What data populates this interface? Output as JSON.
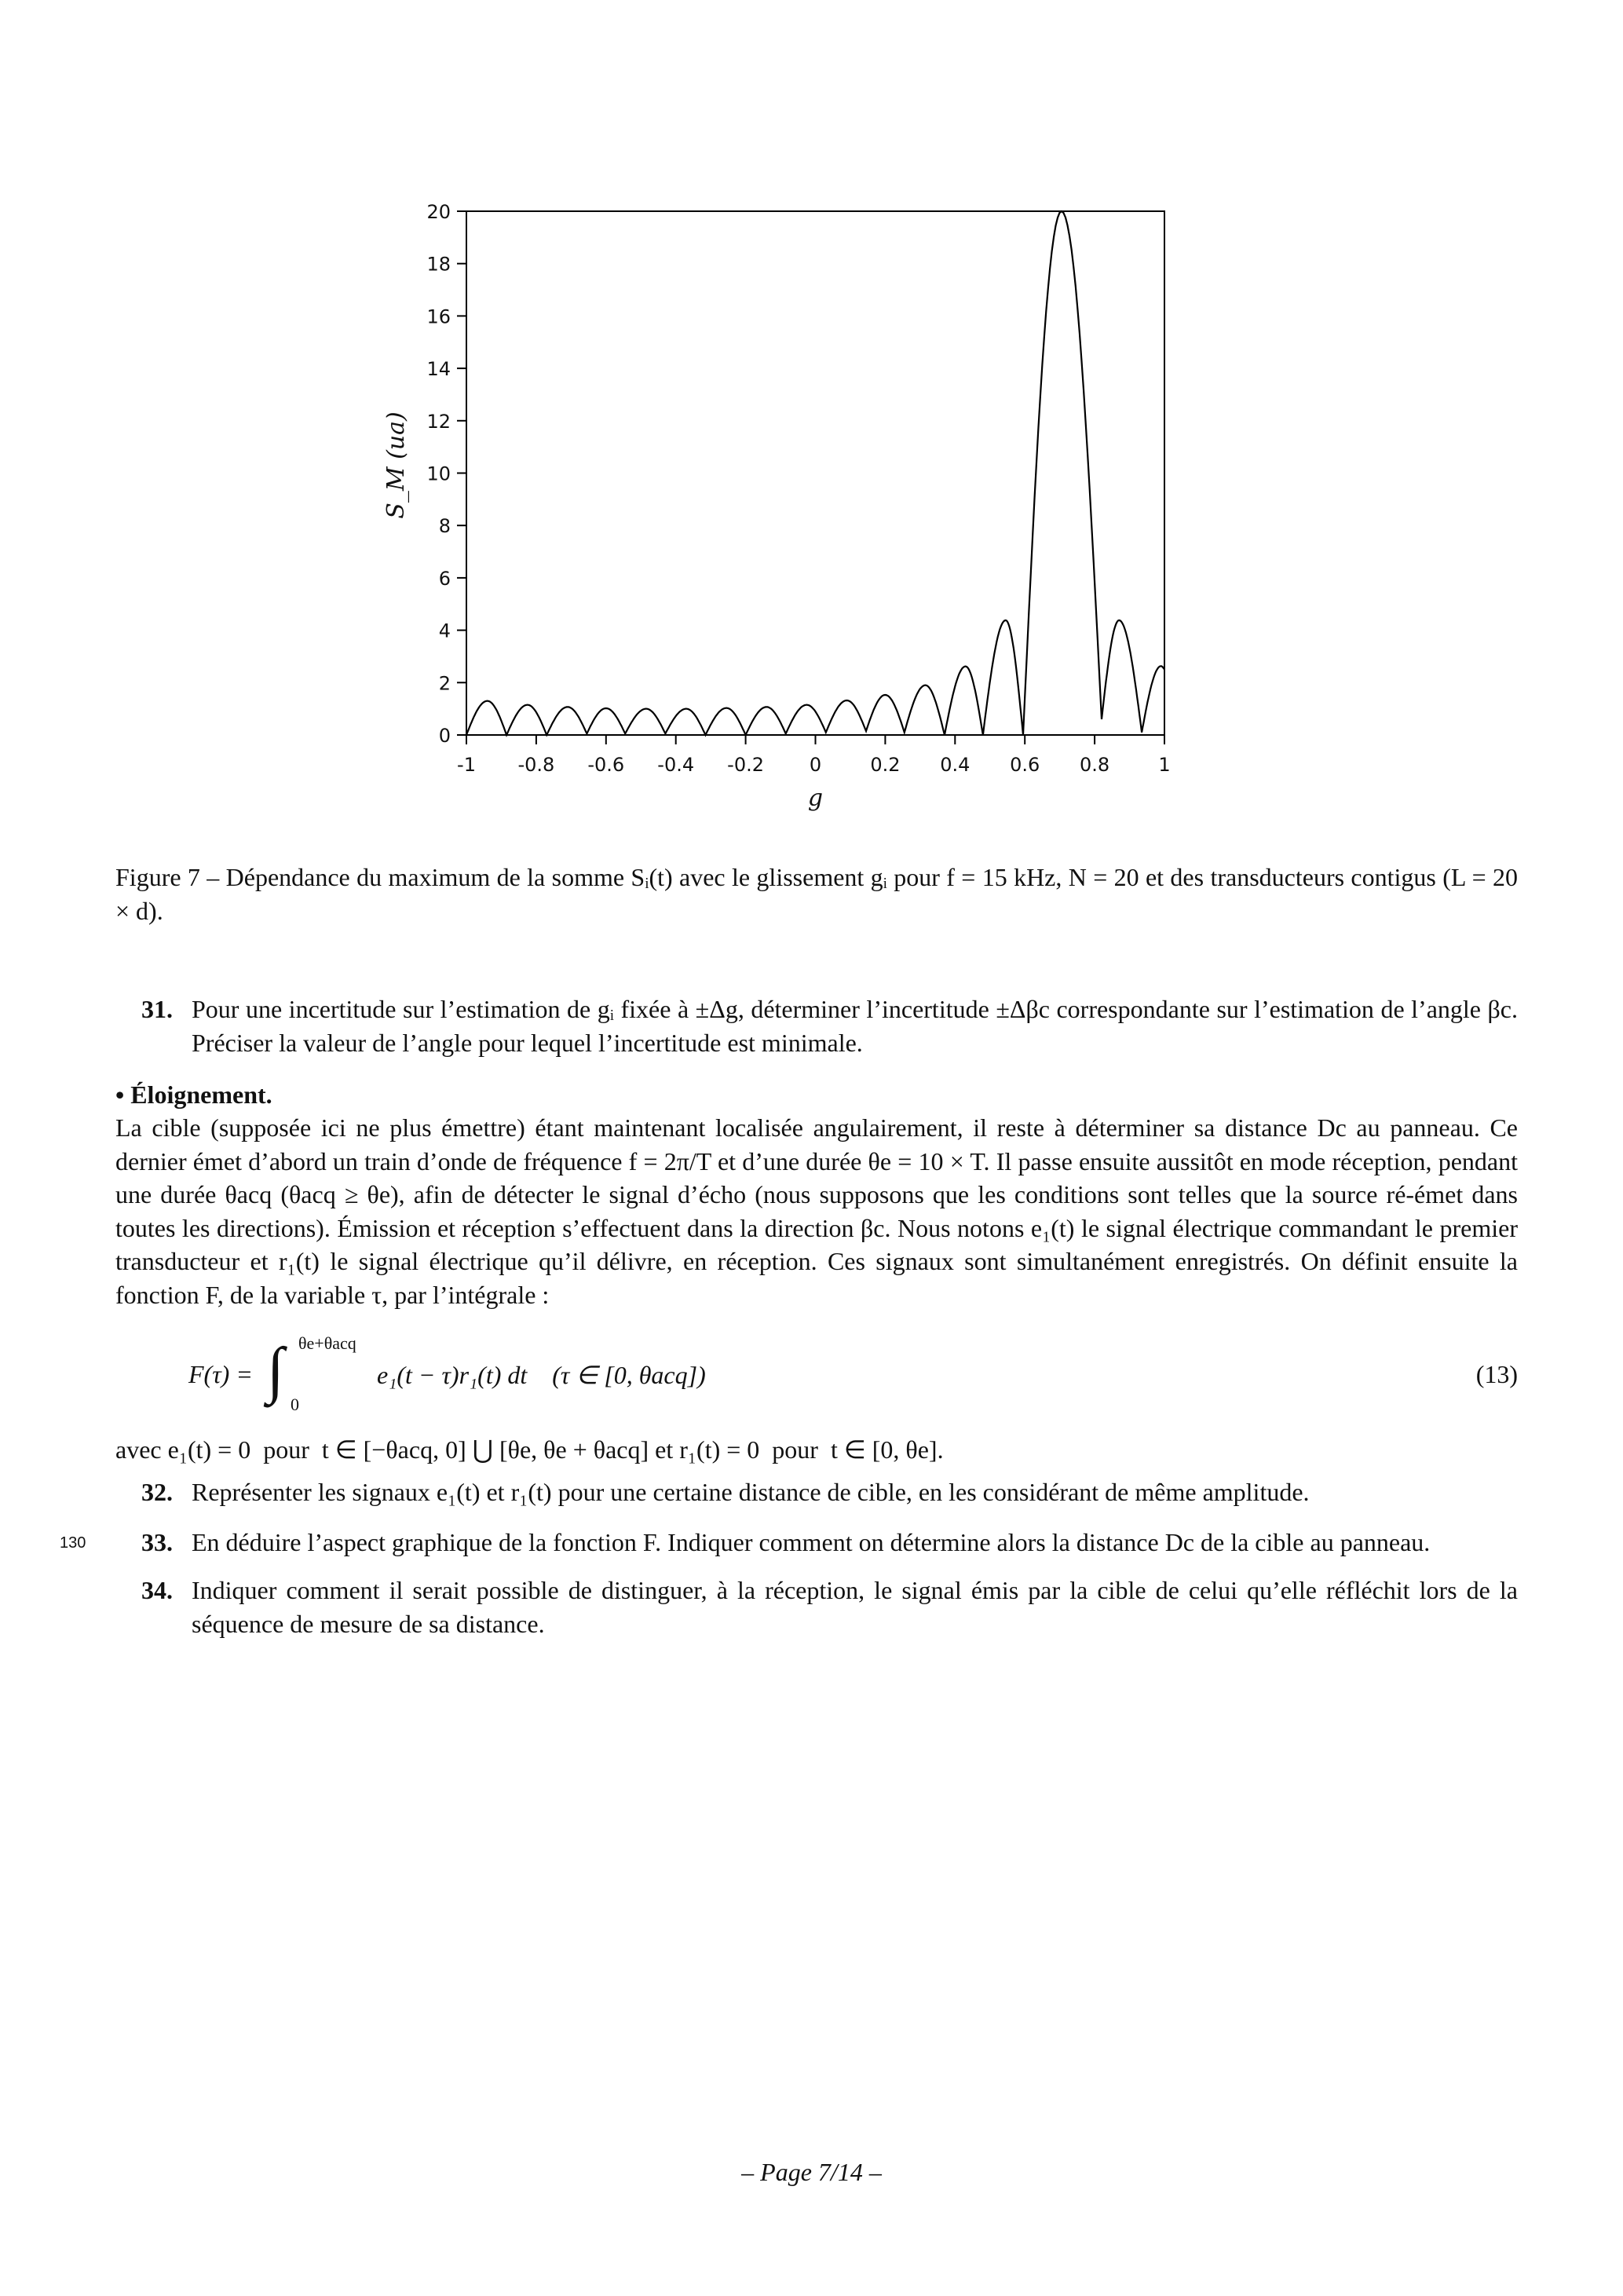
{
  "chart_data": {
    "type": "line",
    "xlabel": "g",
    "ylabel": "S_M   (ua)",
    "xlim": [
      -1,
      1
    ],
    "ylim": [
      0,
      20
    ],
    "x_ticks": [
      "-1",
      "-0.8",
      "-0.6",
      "-0.4",
      "-0.2",
      "0",
      "0.2",
      "0.4",
      "0.6",
      "0.8",
      "1"
    ],
    "x_tick_values": [
      -1,
      -0.8,
      -0.6,
      -0.4,
      -0.2,
      0,
      0.2,
      0.4,
      0.6,
      0.8,
      1
    ],
    "y_ticks": [
      "0",
      "2",
      "4",
      "6",
      "8",
      "10",
      "12",
      "14",
      "16",
      "18",
      "20"
    ],
    "y_tick_values": [
      0,
      2,
      4,
      6,
      8,
      10,
      12,
      14,
      16,
      18,
      20
    ],
    "grid": false,
    "line_color": "#000000",
    "series": [
      {
        "x": [
          -1,
          -0.94,
          -0.885,
          -0.825,
          -0.77,
          -0.71,
          -0.655,
          -0.6,
          -0.545,
          -0.485,
          -0.43,
          -0.37,
          -0.315,
          -0.255,
          -0.2,
          -0.14,
          -0.085,
          -0.025,
          0.03,
          0.09,
          0.145,
          0.2,
          0.255,
          0.315,
          0.37,
          0.43,
          0.48,
          0.545,
          0.595,
          0.705,
          0.82,
          0.87,
          0.935,
          0.99,
          1
        ],
        "y": [
          0,
          1.3,
          0,
          1.15,
          0,
          1.07,
          0.05,
          1.02,
          0.05,
          1.0,
          0.05,
          1.0,
          0,
          1.03,
          0,
          1.07,
          0.05,
          1.15,
          0.1,
          1.32,
          0.15,
          1.53,
          0.1,
          1.9,
          0,
          2.62,
          0,
          4.38,
          0,
          20,
          0.6,
          4.38,
          0.1,
          2.63,
          2.5
        ]
      }
    ]
  },
  "caption": "Figure 7 – Dépendance du maximum de la somme Sᵢ(t) avec le glissement gᵢ pour f = 15 kHz, N = 20 et des transducteurs contigus (L = 20 × d).",
  "questions": [
    {
      "num": "31.",
      "text": "Pour une incertitude sur l’estimation de gᵢ fixée à ±Δg, déterminer l’incertitude ±Δβc correspondante sur l’estimation de l’angle βc. Préciser la valeur de l’angle pour lequel l’incertitude est minimale."
    },
    {
      "num": "32.",
      "text": "Représenter les signaux e₁(t) et r₁(t) pour une certaine distance de cible, en les considérant de même amplitude."
    },
    {
      "num": "33.",
      "text": "En déduire l’aspect graphique de la fonction F. Indiquer comment on détermine alors la distance Dc de la cible au panneau."
    },
    {
      "num": "34.",
      "text": "Indiquer comment il serait possible de distinguer, à la réception, le signal émis par la cible de celui qu’elle réfléchit lors de la séquence de mesure de sa distance."
    }
  ],
  "section_title": "• Éloignement.",
  "paragraph": "La cible (supposée ici ne plus émettre) étant maintenant localisée angulairement, il reste à déterminer sa distance Dc au panneau. Ce dernier émet d’abord un train d’onde de fréquence f = 2π/T et d’une durée θe = 10 × T. Il passe ensuite aussitôt en mode réception, pendant une durée θacq (θacq ≥ θe), afin de détecter le signal d’écho (nous supposons que les conditions sont telles que la source ré-émet dans toutes les directions). Émission et réception s’effectuent dans la direction βc. Nous notons e₁(t) le signal électrique commandant le premier transducteur et r₁(t) le signal électrique qu’il délivre, en réception. Ces signaux sont simultanément enregistrés. On définit ensuite la fonction F, de la variable τ, par l’intégrale :",
  "equation": {
    "lhs": "F(τ) =",
    "integral": "∫",
    "upper": "θe+θacq",
    "lower": "0",
    "integrand": "e₁(t − τ)r₁(t) dt    (τ ∈ [0, θacq])",
    "number": "(13)"
  },
  "condition": "avec e₁(t) = 0  pour  t ∈ [−θacq, 0] ⋃ [θe, θe + θacq] et r₁(t) = 0  pour  t ∈ [0, θe].",
  "line_number": "130",
  "footer": "– Page 7/14 –"
}
